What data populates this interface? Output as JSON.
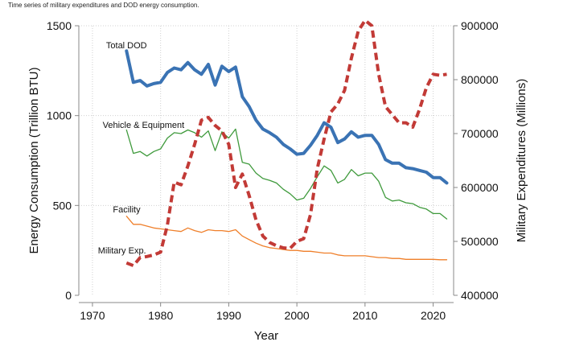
{
  "caption": "Time series of military expenditures and DOD energy consumption.",
  "chart_data": {
    "type": "line",
    "title": "",
    "xlabel": "Year",
    "ylabel_left": "Energy Consumption (Trillion BTU)",
    "ylabel_right": "Military Expenditures (Millions)",
    "xlim": [
      1968,
      2023
    ],
    "ylim_left": [
      0,
      1500
    ],
    "ylim_right": [
      400000,
      900000
    ],
    "x_ticks": [
      1970,
      1980,
      1990,
      2000,
      2010,
      2020
    ],
    "y_left_ticks": [
      0,
      500,
      1000,
      1500
    ],
    "y_right_ticks": [
      400000,
      500000,
      600000,
      700000,
      800000,
      900000
    ],
    "grid": true,
    "series": [
      {
        "name": "Total DOD",
        "axis": "left",
        "color": "#3a73b4",
        "style": "solid",
        "width": 4,
        "x": [
          1975,
          1976,
          1977,
          1978,
          1979,
          1980,
          1981,
          1982,
          1983,
          1984,
          1985,
          1986,
          1987,
          1988,
          1989,
          1990,
          1991,
          1992,
          1993,
          1994,
          1995,
          1996,
          1997,
          1998,
          1999,
          2000,
          2001,
          2002,
          2003,
          2004,
          2005,
          2006,
          2007,
          2008,
          2009,
          2010,
          2011,
          2012,
          2013,
          2014,
          2015,
          2016,
          2017,
          2018,
          2019,
          2020,
          2021,
          2022
        ],
        "values": [
          1360,
          1185,
          1195,
          1165,
          1178,
          1185,
          1240,
          1265,
          1255,
          1295,
          1255,
          1230,
          1285,
          1170,
          1275,
          1245,
          1270,
          1105,
          1050,
          975,
          925,
          905,
          880,
          840,
          815,
          785,
          790,
          835,
          890,
          960,
          935,
          850,
          870,
          910,
          880,
          890,
          890,
          840,
          755,
          735,
          735,
          710,
          705,
          695,
          685,
          655,
          655,
          625
        ],
        "label_year": 1975
      },
      {
        "name": "Vehicle & Equipment",
        "axis": "left",
        "color": "#3f9a3c",
        "style": "solid",
        "width": 1.3,
        "x": [
          1975,
          1976,
          1977,
          1978,
          1979,
          1980,
          1981,
          1982,
          1983,
          1984,
          1985,
          1986,
          1987,
          1988,
          1989,
          1990,
          1991,
          1992,
          1993,
          1994,
          1995,
          1996,
          1997,
          1998,
          1999,
          2000,
          2001,
          2002,
          2003,
          2004,
          2005,
          2006,
          2007,
          2008,
          2009,
          2010,
          2011,
          2012,
          2013,
          2014,
          2015,
          2016,
          2017,
          2018,
          2019,
          2020,
          2021,
          2022
        ],
        "values": [
          920,
          790,
          800,
          775,
          800,
          815,
          875,
          905,
          900,
          920,
          905,
          880,
          915,
          805,
          910,
          875,
          925,
          740,
          730,
          680,
          650,
          640,
          625,
          590,
          565,
          530,
          540,
          595,
          660,
          720,
          695,
          625,
          645,
          700,
          665,
          680,
          680,
          635,
          545,
          525,
          530,
          515,
          510,
          490,
          480,
          455,
          455,
          425
        ],
        "label_year": 1975
      },
      {
        "name": "Facility",
        "axis": "left",
        "color": "#ef7f2a",
        "style": "solid",
        "width": 1.3,
        "x": [
          1975,
          1976,
          1977,
          1978,
          1979,
          1980,
          1981,
          1982,
          1983,
          1984,
          1985,
          1986,
          1987,
          1988,
          1989,
          1990,
          1991,
          1992,
          1993,
          1994,
          1995,
          1996,
          1997,
          1998,
          1999,
          2000,
          2001,
          2002,
          2003,
          2004,
          2005,
          2006,
          2007,
          2008,
          2009,
          2010,
          2011,
          2012,
          2013,
          2014,
          2015,
          2016,
          2017,
          2018,
          2019,
          2020,
          2021,
          2022
        ],
        "values": [
          440,
          395,
          395,
          385,
          375,
          370,
          365,
          360,
          355,
          375,
          360,
          350,
          365,
          360,
          360,
          355,
          365,
          330,
          310,
          290,
          275,
          265,
          260,
          255,
          250,
          250,
          245,
          245,
          240,
          235,
          235,
          225,
          220,
          220,
          220,
          220,
          215,
          210,
          210,
          205,
          205,
          200,
          200,
          200,
          200,
          200,
          198,
          198
        ],
        "label_year": 1975
      },
      {
        "name": "Military Exp.",
        "axis": "right",
        "color": "#c23a36",
        "style": "dashed",
        "width": 4,
        "x": [
          1975,
          1976,
          1977,
          1978,
          1979,
          1980,
          1981,
          1982,
          1983,
          1984,
          1985,
          1986,
          1987,
          1988,
          1989,
          1990,
          1991,
          1992,
          1993,
          1994,
          1995,
          1996,
          1997,
          1998,
          1999,
          2000,
          2001,
          2002,
          2003,
          2004,
          2005,
          2006,
          2007,
          2008,
          2009,
          2010,
          2011,
          2012,
          2013,
          2014,
          2015,
          2016,
          2017,
          2018,
          2019,
          2020,
          2021,
          2022
        ],
        "values": [
          460000,
          455000,
          470000,
          472000,
          475000,
          480000,
          530000,
          610000,
          605000,
          640000,
          680000,
          725000,
          730000,
          715000,
          705000,
          680000,
          600000,
          625000,
          585000,
          540000,
          510000,
          498000,
          492000,
          488000,
          487000,
          500000,
          505000,
          550000,
          635000,
          690000,
          740000,
          755000,
          780000,
          840000,
          890000,
          910000,
          900000,
          810000,
          750000,
          735000,
          720000,
          720000,
          712000,
          745000,
          785000,
          810000,
          808000,
          810000
        ],
        "label_year": 1975
      }
    ]
  }
}
